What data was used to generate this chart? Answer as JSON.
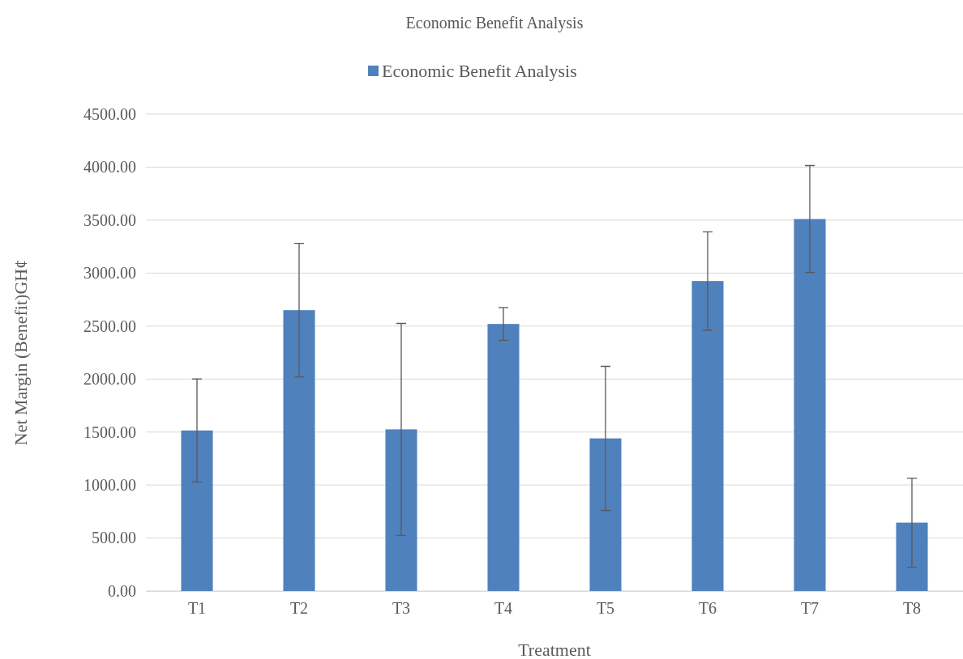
{
  "chart_data": {
    "type": "bar",
    "title": "Economic Benefit Analysis",
    "xlabel": "Treatment",
    "ylabel": "Net Margin (Benefit)GH¢",
    "categories": [
      "T1",
      "T2",
      "T3",
      "T4",
      "T5",
      "T6",
      "T7",
      "T8"
    ],
    "series": [
      {
        "name": "Economic Benefit Analysis",
        "color": "#4f81bd",
        "values": [
          1515,
          2650,
          1525,
          2520,
          1440,
          2925,
          3510,
          645
        ],
        "errors": [
          485,
          630,
          1000,
          155,
          680,
          465,
          505,
          420
        ]
      }
    ],
    "ylim": [
      0,
      4500
    ],
    "yticks": [
      {
        "value": 0,
        "label": "0.00"
      },
      {
        "value": 500,
        "label": "500.00"
      },
      {
        "value": 1000,
        "label": "1000.00"
      },
      {
        "value": 1500,
        "label": "1500.00"
      },
      {
        "value": 2000,
        "label": "2000.00"
      },
      {
        "value": 2500,
        "label": "2500.00"
      },
      {
        "value": 3000,
        "label": "3000.00"
      },
      {
        "value": 3500,
        "label": "3500.00"
      },
      {
        "value": 4000,
        "label": "4000.00"
      },
      {
        "value": 4500,
        "label": "4500.00"
      }
    ],
    "grid": "y",
    "legend": "top"
  }
}
